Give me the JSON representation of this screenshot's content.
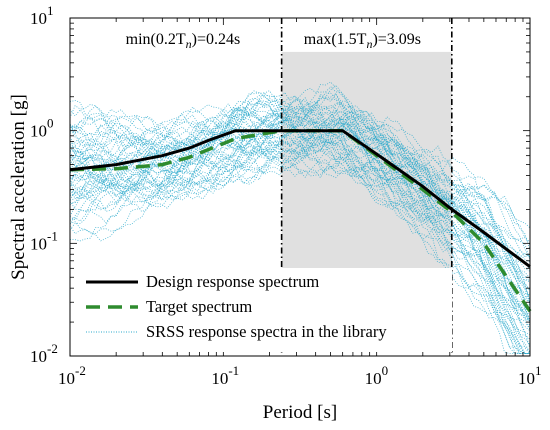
{
  "chart_data": {
    "type": "line",
    "x_scale": "log",
    "y_scale": "log",
    "xlim": [
      0.01,
      10
    ],
    "ylim": [
      0.01,
      10
    ],
    "xlabel": "Period [s]",
    "ylabel": "Spectral acceleration [g]",
    "x_ticks": [
      {
        "value": 0.01,
        "base": "10",
        "exp": "-2"
      },
      {
        "value": 0.1,
        "base": "10",
        "exp": "-1"
      },
      {
        "value": 1,
        "base": "10",
        "exp": "0"
      },
      {
        "value": 10,
        "base": "10",
        "exp": "1"
      }
    ],
    "y_ticks": [
      {
        "value": 0.01,
        "base": "10",
        "exp": "-2"
      },
      {
        "value": 0.1,
        "base": "10",
        "exp": "-1"
      },
      {
        "value": 1,
        "base": "10",
        "exp": "0"
      },
      {
        "value": 10,
        "base": "10",
        "exp": "1"
      }
    ],
    "grid": false,
    "legend_position": "bottom-left",
    "series": [
      {
        "name": "Design response spectrum",
        "color": "#000000",
        "style": "solid",
        "x": [
          0.01,
          0.02,
          0.04,
          0.06,
          0.08,
          0.12,
          0.24,
          0.6,
          1.0,
          2.0,
          3.09,
          5.0,
          10.0
        ],
        "y": [
          0.45,
          0.5,
          0.6,
          0.7,
          0.82,
          1.0,
          1.0,
          1.0,
          0.62,
          0.32,
          0.2,
          0.125,
          0.062
        ]
      },
      {
        "name": "Target spectrum",
        "color": "#2e8b2e",
        "style": "dashed",
        "x": [
          0.01,
          0.02,
          0.04,
          0.06,
          0.08,
          0.12,
          0.24,
          0.6,
          1.0,
          2.0,
          3.09,
          5.0,
          10.0
        ],
        "y": [
          0.45,
          0.46,
          0.5,
          0.58,
          0.68,
          0.85,
          1.0,
          1.0,
          0.6,
          0.3,
          0.19,
          0.1,
          0.025
        ]
      },
      {
        "name": "SRSS response spectra in the library",
        "color": "#2eaacc",
        "style": "dotted",
        "count": 60
      }
    ],
    "vlines": [
      {
        "x": 0.24,
        "label": "min(0.2T",
        "sub": "n",
        "tail": ")=0.24s"
      },
      {
        "x": 3.09,
        "label": "max(1.5T",
        "sub": "n",
        "tail": ")=3.09s"
      }
    ],
    "shaded_region": {
      "x": [
        0.24,
        3.09
      ],
      "y": [
        0.06,
        5.0
      ],
      "color": "#e0e0e0"
    }
  }
}
